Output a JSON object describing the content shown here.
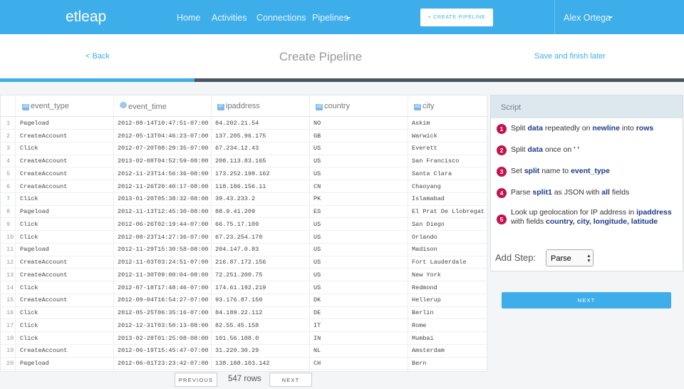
{
  "nav": {
    "logo": "etleap",
    "links": [
      "Home",
      "Activities",
      "Connections",
      "Pipelines"
    ],
    "button": "+ CREATE PIPELINE",
    "user": "Alex Ortega"
  },
  "header": {
    "back": "< Back",
    "title": "Create Pipeline",
    "save": "Save and finish later"
  },
  "table": {
    "columns": [
      {
        "badge": "AB",
        "name": "event_type"
      },
      {
        "badge": "",
        "name": "event_time"
      },
      {
        "badge": "IP",
        "name": "ipaddress"
      },
      {
        "badge": "AB",
        "name": "country"
      },
      {
        "badge": "AB",
        "name": "city"
      }
    ],
    "rows": [
      [
        "1",
        "Pageload",
        "2012-08-14T10:47:51-07:00",
        "84.202.21.54",
        "NO",
        "Askim"
      ],
      [
        "2",
        "CreateAccount",
        "2012-05-13T04:46:23-07:00",
        "137.205.96.175",
        "GB",
        "Warwick"
      ],
      [
        "3",
        "Click",
        "2012-07-20T08:29:35-07:00",
        "67.234.12.43",
        "US",
        "Everett"
      ],
      [
        "4",
        "CreateAccount",
        "2013-02-08T04:52:59-08:00",
        "208.113.83.165",
        "US",
        "San Francisco"
      ],
      [
        "5",
        "CreateAccount",
        "2012-11-23T14:56:36-08:00",
        "173.252.198.162",
        "US",
        "Santa Clara"
      ],
      [
        "6",
        "CreateAccount",
        "2012-11-26T20:40:17-08:00",
        "118.186.156.11",
        "CN",
        "Chaoyang"
      ],
      [
        "7",
        "Click",
        "2013-01-20T05:38:32-08:00",
        "39.43.233.2",
        "PK",
        "Islamabad"
      ],
      [
        "8",
        "Pageload",
        "2012-11-13T12:45:30-08:00",
        "88.9.41.209",
        "ES",
        "El Prat De Llobregat"
      ],
      [
        "9",
        "Click",
        "2012-06-26T02:19:44-07:00",
        "66.75.17.109",
        "US",
        "San Diego"
      ],
      [
        "10",
        "Click",
        "2012-08-23T14:27:36-07:00",
        "67.23.254.170",
        "US",
        "Orlando"
      ],
      [
        "11",
        "Pageload",
        "2012-11-29T15:30:58-08:00",
        "204.147.0.83",
        "US",
        "Madison"
      ],
      [
        "12",
        "CreateAccount",
        "2012-11-03T03:24:51-07:00",
        "216.87.172.156",
        "US",
        "Fort Lauderdale"
      ],
      [
        "13",
        "CreateAccount",
        "2012-11-30T09:00:04-08:00",
        "72.251.200.75",
        "US",
        "New York"
      ],
      [
        "14",
        "Click",
        "2012-07-18T17:48:46-07:00",
        "174.61.192.219",
        "US",
        "Redmond"
      ],
      [
        "15",
        "CreateAccount",
        "2012-09-04T16:54:27-07:00",
        "93.176.87.150",
        "DK",
        "Hellerup"
      ],
      [
        "16",
        "Click",
        "2012-05-25T06:35:16-07:00",
        "84.189.22.112",
        "DE",
        "Berlin"
      ],
      [
        "17",
        "Click",
        "2012-12-31T03:50:13-08:00",
        "82.55.45.158",
        "IT",
        "Rome"
      ],
      [
        "18",
        "Click",
        "2013-02-28T01:25:08-08:00",
        "101.56.108.0",
        "IN",
        "Mumbai"
      ],
      [
        "19",
        "CreateAccount",
        "2012-06-19T15:45:47-07:00",
        "31.220.30.29",
        "NL",
        "Amsterdam"
      ],
      [
        "20",
        "Pageload",
        "2012-06-01T23:23:42-07:00",
        "138.188.103.142",
        "CH",
        "Bern"
      ]
    ]
  },
  "pagination": {
    "previous": "PREVIOUS",
    "rows": "547 rows",
    "next": "NEXT"
  },
  "script": {
    "title": "Script",
    "steps": [
      {
        "num": "1",
        "parts": [
          "Split ",
          "data",
          " repeatedly on ",
          "newline",
          " into ",
          "rows"
        ]
      },
      {
        "num": "2",
        "parts": [
          "Split ",
          "data",
          " once on ",
          "' '"
        ]
      },
      {
        "num": "3",
        "parts": [
          "Set ",
          "split",
          " name to ",
          "event_type"
        ]
      },
      {
        "num": "4",
        "parts": [
          "Parse ",
          "split1",
          " as JSON with ",
          "all",
          " fields"
        ]
      },
      {
        "num": "5",
        "parts": [
          "Look up geolocation for IP address in ",
          "ipaddress",
          " with fields ",
          "country, city, longitude, latitude"
        ]
      }
    ],
    "add_step": "Add Step:",
    "select": "Parse",
    "next": "NEXT"
  }
}
